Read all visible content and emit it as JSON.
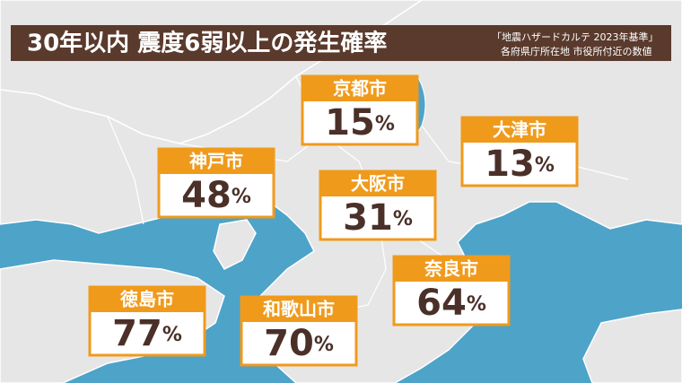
{
  "header": {
    "title": "30年以内 震度6弱以上の発生確率",
    "note_lines": [
      "「地震ハザードカルテ 2023年基準」",
      "各府県庁所在地 市役所付近の数値"
    ]
  },
  "cities": [
    {
      "name": "京都市",
      "value": 15,
      "unit": "%"
    },
    {
      "name": "大津市",
      "value": 13,
      "unit": "%"
    },
    {
      "name": "神戸市",
      "value": 48,
      "unit": "%"
    },
    {
      "name": "大阪市",
      "value": 31,
      "unit": "%"
    },
    {
      "name": "奈良市",
      "value": 64,
      "unit": "%"
    },
    {
      "name": "徳島市",
      "value": 77,
      "unit": "%"
    },
    {
      "name": "和歌山市",
      "value": 70,
      "unit": "%"
    }
  ]
}
